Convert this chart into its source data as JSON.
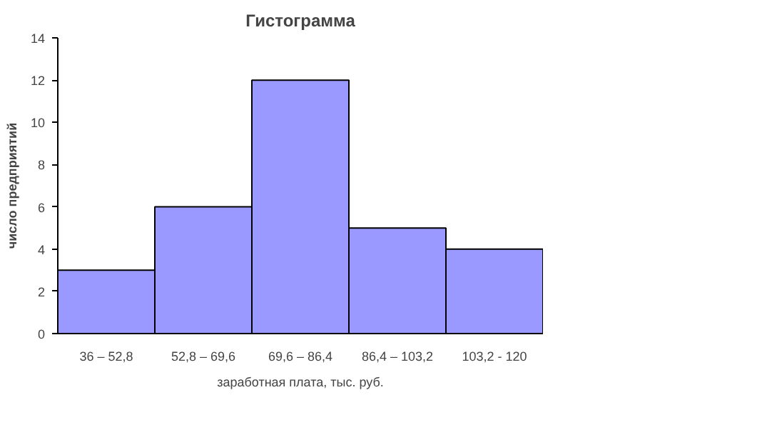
{
  "chart_data": {
    "type": "bar",
    "title": "Гистограмма",
    "xlabel": "заработная плата, тыс. руб.",
    "ylabel": "число предприятий",
    "categories": [
      "36 – 52,8",
      "52,8 – 69,6",
      "69,6 – 86,4",
      "86,4 – 103,2",
      "103,2 - 120"
    ],
    "values": [
      3,
      6,
      12,
      5,
      4
    ],
    "color": "#9999ff",
    "ylim": [
      0,
      14
    ],
    "yticks": [
      0,
      2,
      4,
      6,
      8,
      10,
      12,
      14
    ],
    "grid": false
  }
}
